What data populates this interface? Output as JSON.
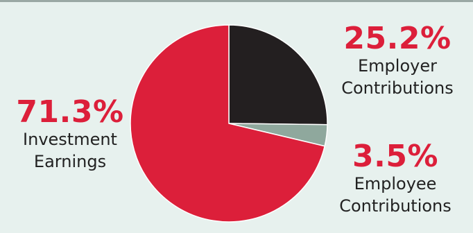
{
  "chart_data": {
    "type": "pie",
    "slices": [
      {
        "pct": "25.2%",
        "value": 25.2,
        "line1": "Employer",
        "line2": "Contributions",
        "color": "#231f20"
      },
      {
        "pct": "3.5%",
        "value": 3.5,
        "line1": "Employee",
        "line2": "Contributions",
        "color": "#8fa89d"
      },
      {
        "pct": "71.3%",
        "value": 71.3,
        "line1": "Investment",
        "line2": "Earnings",
        "color": "#dc1f3a"
      }
    ],
    "colors": {
      "background": "#e7f1ee",
      "label_pct": "#dc1f3a"
    }
  }
}
